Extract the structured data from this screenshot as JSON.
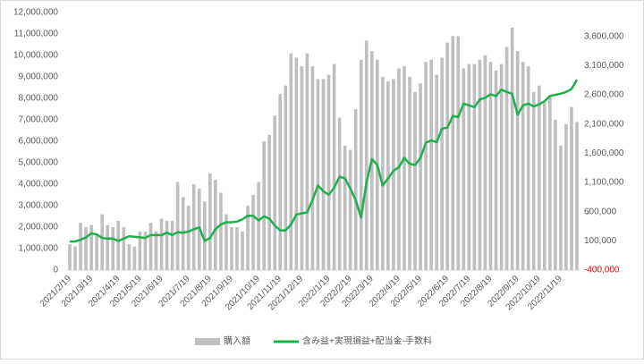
{
  "chart_data": {
    "type": "bar_line",
    "categories": [
      "2021/2/19",
      null,
      null,
      null,
      "2021/3/19",
      null,
      null,
      null,
      null,
      "2021/4/19",
      null,
      null,
      null,
      "2021/5/19",
      null,
      null,
      null,
      "2021/6/19",
      null,
      null,
      null,
      null,
      "2021/7/19",
      null,
      null,
      null,
      "2021/8/19",
      null,
      null,
      null,
      "2021/9/19",
      null,
      null,
      null,
      null,
      "2021/10/19",
      null,
      null,
      null,
      "2021/11/19",
      null,
      null,
      null,
      "2021/12/19",
      null,
      null,
      null,
      null,
      "2022/1/19",
      null,
      null,
      null,
      "2022/2/19",
      null,
      null,
      null,
      "2022/3/19",
      null,
      null,
      null,
      null,
      "2022/4/19",
      null,
      null,
      null,
      "2022/5/19",
      null,
      null,
      null,
      null,
      "2022/6/19",
      null,
      null,
      null,
      "2022/7/19",
      null,
      null,
      null,
      "2022/8/19",
      null,
      null,
      null,
      null,
      "2022/9/19",
      null,
      null,
      null,
      "2022/10/19",
      null,
      null,
      null,
      "2022/11/19",
      null,
      null,
      null
    ],
    "series": [
      {
        "name": "購入額",
        "type": "bar",
        "color": "#bfbfbf",
        "values": [
          1200000,
          1100000,
          2200000,
          2000000,
          2100000,
          1600000,
          2600000,
          2100000,
          2000000,
          2300000,
          2000000,
          1200000,
          1100000,
          1800000,
          1800000,
          2200000,
          1800000,
          2400000,
          2300000,
          2300000,
          4100000,
          3400000,
          3000000,
          4000000,
          3800000,
          3200000,
          4500000,
          4200000,
          3600000,
          2600000,
          2000000,
          2000000,
          1800000,
          3000000,
          3500000,
          4100000,
          6000000,
          6300000,
          7200000,
          8200000,
          8600000,
          10100000,
          9900000,
          9500000,
          10100000,
          9500000,
          8900000,
          8900000,
          9100000,
          9600000,
          7100000,
          5800000,
          5600000,
          7500000,
          9800000,
          10700000,
          10200000,
          9800000,
          9000000,
          8800000,
          8900000,
          9400000,
          9500000,
          9000000,
          8300000,
          8700000,
          9700000,
          9800000,
          9100000,
          9900000,
          10600000,
          10900000,
          10900000,
          9400000,
          9600000,
          9600000,
          9800000,
          10000000,
          9700000,
          9300000,
          9600000,
          10400000,
          11300000,
          10200000,
          9700000,
          9500000,
          8300000,
          8600000,
          7800000,
          8100000,
          7000000,
          5800000,
          6800000,
          7600000,
          6900000
        ]
      },
      {
        "name": "含み益+実現損益+配当金-手数料",
        "type": "line",
        "axis": "y2",
        "color": "#1eb04a",
        "values": [
          90000,
          90000,
          120000,
          160000,
          230000,
          210000,
          150000,
          140000,
          140000,
          100000,
          140000,
          180000,
          170000,
          160000,
          150000,
          200000,
          200000,
          200000,
          240000,
          200000,
          250000,
          240000,
          260000,
          300000,
          330000,
          100000,
          150000,
          300000,
          380000,
          420000,
          420000,
          430000,
          470000,
          530000,
          530000,
          450000,
          520000,
          480000,
          360000,
          280000,
          280000,
          380000,
          550000,
          570000,
          590000,
          800000,
          1050000,
          950000,
          890000,
          1010000,
          1200000,
          1170000,
          1000000,
          800000,
          500000,
          1100000,
          1500000,
          1400000,
          1050000,
          1170000,
          1300000,
          1360000,
          1520000,
          1420000,
          1400000,
          1520000,
          1780000,
          1820000,
          1790000,
          2020000,
          2040000,
          2240000,
          2220000,
          2450000,
          2420000,
          2390000,
          2520000,
          2550000,
          2610000,
          2580000,
          2690000,
          2650000,
          2620000,
          2260000,
          2420000,
          2450000,
          2400000,
          2440000,
          2490000,
          2580000,
          2600000,
          2620000,
          2650000,
          2700000,
          2860000
        ]
      }
    ],
    "ylim": [
      0,
      12000000
    ],
    "yticks": [
      0,
      {
        "value": 1000000,
        "label": "1,000,000"
      },
      {
        "value": 2000000,
        "label": "2,000,000"
      },
      {
        "value": 3000000,
        "label": "3,000,000"
      },
      {
        "value": 4000000,
        "label": "4,000,000"
      },
      {
        "value": 5000000,
        "label": "5,000,000"
      },
      {
        "value": 6000000,
        "label": "6,000,000"
      },
      {
        "value": 7000000,
        "label": "7,000,000"
      },
      {
        "value": 8000000,
        "label": "8,000,000"
      },
      {
        "value": 9000000,
        "label": "9,000,000"
      },
      {
        "value": 10000000,
        "label": "10,000,000"
      },
      {
        "value": 11000000,
        "label": "11,000,000"
      },
      {
        "value": 12000000,
        "label": "12,000,000"
      }
    ],
    "y2lim": [
      -400000,
      4010000
    ],
    "y2ticks": [
      {
        "value": -400000,
        "label": "-400,000"
      },
      {
        "value": 100000,
        "label": "100,000"
      },
      {
        "value": 600000,
        "label": "600,000"
      },
      {
        "value": 1100000,
        "label": "1,100,000"
      },
      {
        "value": 1600000,
        "label": "1,600,000"
      },
      {
        "value": 2100000,
        "label": "2,100,000"
      },
      {
        "value": 2600000,
        "label": "2,600,000"
      },
      {
        "value": 3100000,
        "label": "3,100,000"
      },
      {
        "value": 3600000,
        "label": "3,600,000"
      }
    ],
    "negative_tick_color": "#ff0000"
  }
}
